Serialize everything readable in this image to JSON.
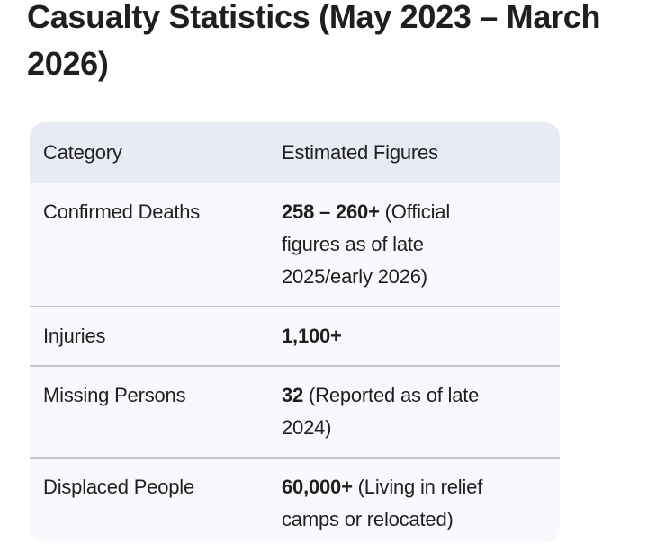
{
  "page": {
    "title": "Casualty Statistics (May 2023 – March 2026)"
  },
  "colors": {
    "text": "#1f1f1f",
    "header_bg": "#e8ebf3",
    "body_bg": "#f8f9fc",
    "divider": "#c4c7cc",
    "page_bg": "#ffffff"
  },
  "table": {
    "columns": [
      "Category",
      "Estimated Figures"
    ],
    "rows": [
      {
        "category": "Confirmed Deaths",
        "figure": "258 – 260+",
        "note": "(Official figures as of late 2025/early 2026)"
      },
      {
        "category": "Injuries",
        "figure": "1,100+",
        "note": ""
      },
      {
        "category": "Missing Persons",
        "figure": "32",
        "note": "(Reported as of late 2024)"
      },
      {
        "category": "Displaced People",
        "figure": "60,000+",
        "note": "(Living in relief camps or relocated)"
      }
    ]
  }
}
